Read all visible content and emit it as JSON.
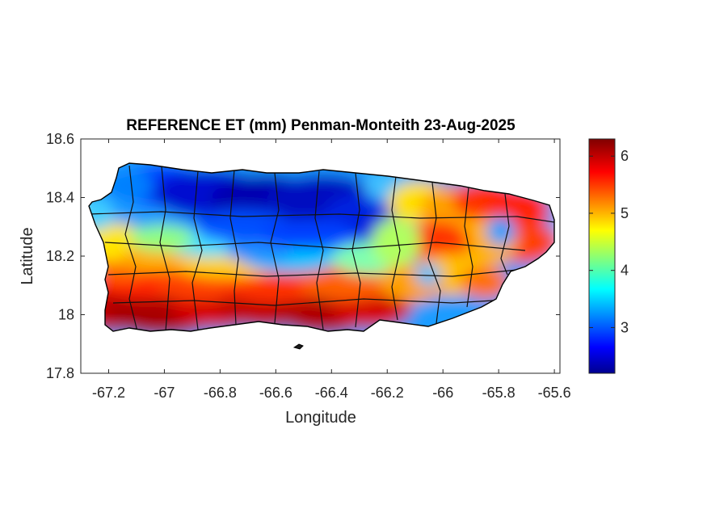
{
  "chart_data": {
    "type": "heatmap",
    "title": "REFERENCE ET (mm) Penman-Monteith 23-Aug-2025",
    "xlabel": "Longitude",
    "ylabel": "Latitude",
    "xlim": [
      -67.3,
      -65.58
    ],
    "ylim": [
      17.8,
      18.6
    ],
    "x_ticks": [
      -67.2,
      -67,
      -66.8,
      -66.6,
      -66.4,
      -66.2,
      -66,
      -65.8,
      -65.6
    ],
    "x_tick_labels": [
      "-67.2",
      "-67",
      "-66.8",
      "-66.6",
      "-66.4",
      "-66.2",
      "-66",
      "-65.8",
      "-65.6"
    ],
    "y_ticks": [
      17.8,
      18,
      18.2,
      18.4,
      18.6
    ],
    "y_tick_labels": [
      "17.8",
      "18",
      "18.2",
      "18.4",
      "18.6"
    ],
    "colorbar": {
      "colormap": "jet",
      "limits": [
        2.2,
        6.3
      ],
      "ticks": [
        3,
        4,
        5,
        6
      ],
      "tick_labels": [
        "3",
        "4",
        "5",
        "6"
      ]
    },
    "grid": false,
    "legend": "none"
  }
}
